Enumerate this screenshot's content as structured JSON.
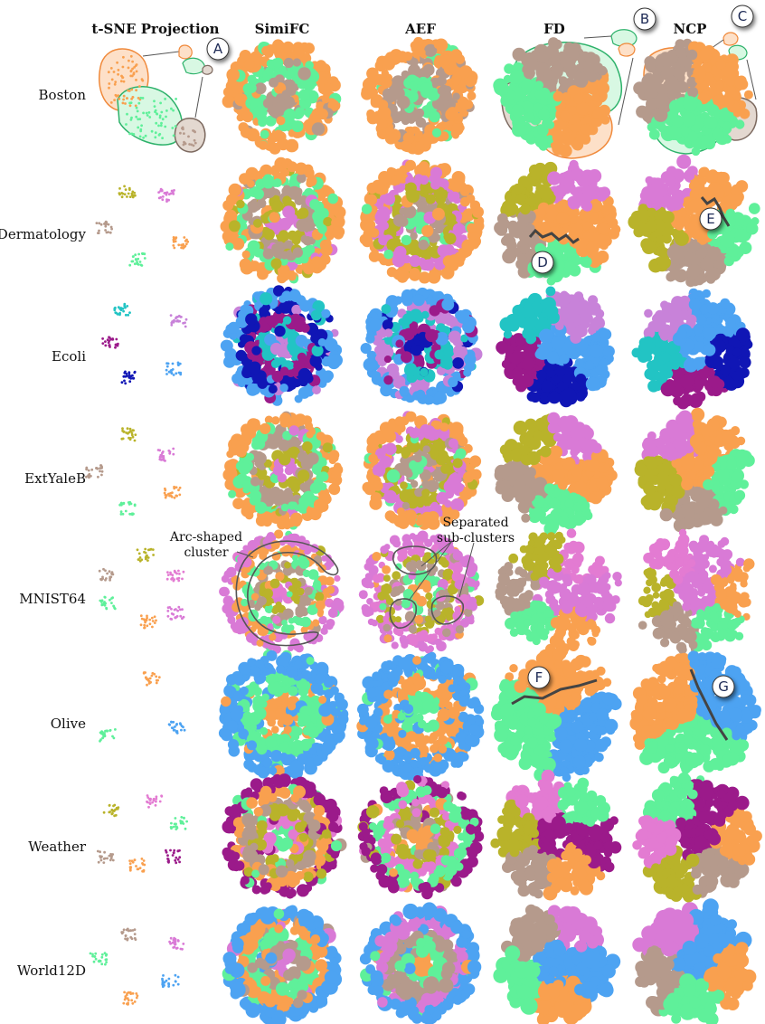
{
  "columns": [
    "t-SNE Projection",
    "SimiFC",
    "AEF",
    "FD",
    "NCP"
  ],
  "rows": [
    "Boston",
    "Dermatology",
    "Ecoli",
    "ExtYaleB",
    "MNIST64",
    "Olive",
    "Weather",
    "World12D"
  ],
  "annotations": {
    "arc": [
      "Arc-shaped",
      "cluster"
    ],
    "separated": [
      "Separated",
      "sub-clusters"
    ]
  },
  "callouts": [
    "A",
    "B",
    "C",
    "D",
    "E",
    "F",
    "G"
  ],
  "colors": {
    "orange": "#f9a04f",
    "green": "#5ff09a",
    "brown": "#b59a8c",
    "olive": "#b9b32a",
    "pink": "#d97ad6",
    "magenta": "#e37bd2",
    "blue": "#4da3f2",
    "darkblue": "#1016b5",
    "purple": "#9b1a8a",
    "cyan": "#22c4c4",
    "lightviolet": "#c882d9"
  },
  "row_classes": {
    "Boston": [
      "orange",
      "green",
      "brown"
    ],
    "Dermatology": [
      "orange",
      "green",
      "brown",
      "olive",
      "pink"
    ],
    "Ecoli": [
      "blue",
      "darkblue",
      "purple",
      "cyan",
      "lightviolet"
    ],
    "ExtYaleB": [
      "orange",
      "green",
      "brown",
      "olive",
      "pink"
    ],
    "MNIST64": [
      "pink",
      "orange",
      "green",
      "brown",
      "olive",
      "magenta"
    ],
    "Olive": [
      "blue",
      "green",
      "orange"
    ],
    "Weather": [
      "purple",
      "orange",
      "brown",
      "olive",
      "magenta",
      "green"
    ],
    "World12D": [
      "blue",
      "orange",
      "green",
      "brown",
      "pink"
    ]
  }
}
